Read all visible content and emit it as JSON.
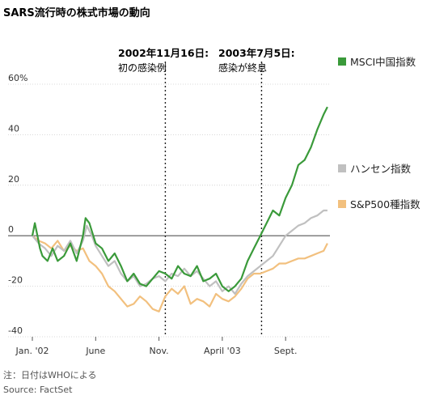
{
  "title": "SARS流行時の株式市場の動向",
  "annotations": [
    {
      "date_line": "2002年11月16日:",
      "label": "初の感染例"
    },
    {
      "date_line": "2003年7月5日:",
      "label": "感染が終息"
    }
  ],
  "footnote": "注：日付はWHOによる",
  "source": "Source: FactSet",
  "colors": {
    "msci": "#3a9a3a",
    "hangseng": "#c0c0c0",
    "sp500": "#f2c07e",
    "grid": "#cccccc",
    "zero": "#555555"
  },
  "chart_data": {
    "type": "line",
    "ylim": [
      -40,
      60
    ],
    "yticks": [
      {
        "value": 60,
        "label": "60%"
      },
      {
        "value": 40,
        "label": "40"
      },
      {
        "value": 20,
        "label": "20"
      },
      {
        "value": 0,
        "label": "0"
      },
      {
        "value": -20,
        "label": "-20"
      },
      {
        "value": -40,
        "label": "-40"
      }
    ],
    "xticks": [
      "Jan. '02",
      "June",
      "Nov.",
      "April '03",
      "Sept."
    ],
    "xtick_months": [
      0,
      5,
      10,
      15,
      20
    ],
    "xlim_months": [
      0,
      23.5
    ],
    "event_months": [
      10.5,
      18.1
    ],
    "grid": true,
    "legend_position": "right",
    "series": [
      {
        "name": "MSCI中国指数",
        "x_months": [
          0,
          0.2,
          0.4,
          0.6,
          0.8,
          1.2,
          1.6,
          2,
          2.5,
          3,
          3.5,
          4,
          4.2,
          4.5,
          5,
          5.5,
          6,
          6.5,
          7,
          7.5,
          8,
          8.5,
          9,
          9.5,
          10,
          10.5,
          11,
          11.5,
          12,
          12.5,
          13,
          13.5,
          14,
          14.5,
          15,
          15.5,
          16,
          16.5,
          17,
          17.5,
          18,
          18.5,
          19,
          19.5,
          20,
          20.5,
          21,
          21.5,
          22,
          22.5,
          23,
          23.3
        ],
        "values": [
          0,
          5,
          0,
          -5,
          -8,
          -10,
          -5,
          -10,
          -8,
          -3,
          -10,
          0,
          7,
          5,
          -3,
          -5,
          -10,
          -7,
          -12,
          -18,
          -15,
          -19,
          -20,
          -17,
          -14,
          -15,
          -17,
          -12,
          -15,
          -16,
          -12,
          -18,
          -17,
          -15,
          -20,
          -22,
          -20,
          -17,
          -10,
          -5,
          0,
          5,
          10,
          8,
          15,
          20,
          28,
          30,
          35,
          42,
          48,
          51
        ]
      },
      {
        "name": "ハンセン指数",
        "x_months": [
          0,
          0.5,
          1,
          1.5,
          2,
          2.5,
          3,
          3.5,
          4,
          4.3,
          4.7,
          5,
          5.5,
          6,
          6.5,
          7,
          7.5,
          8,
          8.5,
          9,
          9.5,
          10,
          10.5,
          11,
          11.5,
          12,
          12.5,
          13,
          13.5,
          14,
          14.5,
          15,
          15.5,
          16,
          16.5,
          17,
          17.5,
          18,
          18.5,
          19,
          19.5,
          20,
          20.5,
          21,
          21.5,
          22,
          22.5,
          23,
          23.3
        ],
        "values": [
          0,
          -3,
          -5,
          -8,
          -4,
          -6,
          -2,
          -7,
          -2,
          4,
          0,
          -4,
          -8,
          -12,
          -10,
          -15,
          -18,
          -16,
          -20,
          -19,
          -17,
          -16,
          -18,
          -15,
          -16,
          -13,
          -16,
          -14,
          -17,
          -20,
          -18,
          -22,
          -20,
          -23,
          -19,
          -16,
          -14,
          -12,
          -10,
          -8,
          -4,
          0,
          2,
          4,
          5,
          7,
          8,
          10,
          10
        ]
      },
      {
        "name": "S&P500種指数",
        "x_months": [
          0,
          0.5,
          1,
          1.5,
          2,
          2.5,
          3,
          3.5,
          4,
          4.5,
          5,
          5.5,
          6,
          6.5,
          7,
          7.5,
          8,
          8.5,
          9,
          9.5,
          10,
          10.5,
          11,
          11.5,
          12,
          12.5,
          13,
          13.5,
          14,
          14.5,
          15,
          15.5,
          16,
          16.5,
          17,
          17.5,
          18,
          18.5,
          19,
          19.5,
          20,
          20.5,
          21,
          21.5,
          22,
          22.5,
          23,
          23.3
        ],
        "values": [
          0,
          -2,
          -3,
          -5,
          -2,
          -6,
          -4,
          -6,
          -5,
          -10,
          -12,
          -15,
          -20,
          -22,
          -25,
          -28,
          -27,
          -24,
          -26,
          -29,
          -30,
          -24,
          -21,
          -23,
          -20,
          -27,
          -25,
          -26,
          -28,
          -23,
          -25,
          -26,
          -24,
          -21,
          -17,
          -15,
          -15,
          -14,
          -13,
          -11,
          -11,
          -10,
          -9,
          -9,
          -8,
          -7,
          -6,
          -3
        ]
      }
    ]
  }
}
